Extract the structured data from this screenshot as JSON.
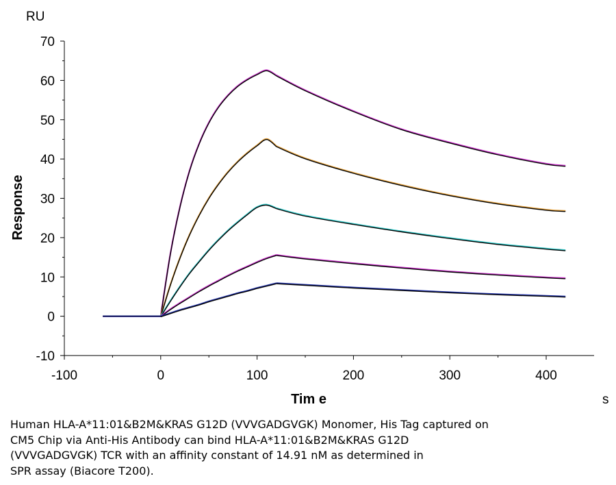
{
  "chart_data": {
    "type": "line",
    "xlabel": "Tim e",
    "xunit": "s",
    "ylabel": "Response",
    "yunit": "RU",
    "xlim": [
      -100,
      460
    ],
    "ylim": [
      -10,
      70
    ],
    "xticks": [
      -100,
      0,
      100,
      200,
      300,
      400
    ],
    "yticks": [
      -10,
      0,
      10,
      20,
      30,
      40,
      50,
      60,
      70
    ],
    "grid": false,
    "fit_color": "#000000",
    "series": [
      {
        "color": "#cc33cc",
        "x": [
          -60,
          0,
          10,
          20,
          30,
          40,
          50,
          60,
          70,
          80,
          90,
          100,
          110,
          120,
          150,
          200,
          250,
          300,
          350,
          400,
          420
        ],
        "y": [
          0,
          0,
          15.9,
          27.9,
          37.1,
          44.0,
          49.3,
          53.3,
          56.3,
          58.6,
          60.3,
          61.6,
          62.6,
          61.3,
          57.5,
          52.2,
          47.6,
          44.2,
          41.2,
          38.8,
          38.3
        ]
      },
      {
        "color": "#e6a23c",
        "x": [
          -60,
          0,
          10,
          20,
          30,
          40,
          50,
          60,
          70,
          80,
          90,
          100,
          110,
          120,
          150,
          200,
          250,
          300,
          350,
          400,
          420
        ],
        "y": [
          0,
          0,
          8.0,
          14.9,
          20.8,
          25.8,
          30.1,
          33.7,
          36.8,
          39.4,
          41.6,
          43.5,
          45.1,
          43.3,
          40.2,
          36.5,
          33.4,
          30.8,
          28.7,
          27.1,
          26.8
        ]
      },
      {
        "color": "#33cccc",
        "x": [
          -60,
          0,
          10,
          20,
          30,
          40,
          50,
          60,
          70,
          80,
          90,
          100,
          110,
          120,
          150,
          200,
          250,
          300,
          350,
          400,
          420
        ],
        "y": [
          0,
          0,
          3.9,
          7.6,
          11.0,
          14.0,
          16.9,
          19.5,
          21.9,
          24.0,
          26.0,
          27.8,
          28.4,
          27.5,
          25.6,
          23.5,
          21.6,
          19.9,
          18.4,
          17.2,
          16.8
        ]
      },
      {
        "color": "#cc33cc",
        "x": [
          -60,
          0,
          10,
          20,
          30,
          40,
          50,
          60,
          70,
          80,
          90,
          100,
          110,
          120,
          150,
          200,
          250,
          300,
          350,
          400,
          420
        ],
        "y": [
          0,
          0,
          1.8,
          3.4,
          4.9,
          6.4,
          7.8,
          9.1,
          10.4,
          11.6,
          12.7,
          13.8,
          14.8,
          15.6,
          14.7,
          13.5,
          12.4,
          11.4,
          10.6,
          9.9,
          9.7
        ]
      },
      {
        "color": "#2233aa",
        "x": [
          -60,
          0,
          10,
          20,
          30,
          40,
          50,
          60,
          70,
          80,
          90,
          100,
          110,
          120,
          150,
          200,
          250,
          300,
          350,
          400,
          420
        ],
        "y": [
          0,
          0,
          0.8,
          1.6,
          2.3,
          3.0,
          3.8,
          4.5,
          5.2,
          5.9,
          6.5,
          7.2,
          7.8,
          8.4,
          8.0,
          7.3,
          6.7,
          6.1,
          5.6,
          5.2,
          5.0
        ]
      }
    ]
  },
  "caption": "Human HLA-A*11:01&B2M&KRAS G12D (VVVGADGVGK) Monomer, His Tag captured on\nCM5 Chip via Anti-His Antibody can bind HLA-A*11:01&B2M&KRAS G12D\n(VVVGADGVGK) TCR with an affinity constant of 14.91 nM as determined in\nSPR assay (Biacore T200)."
}
